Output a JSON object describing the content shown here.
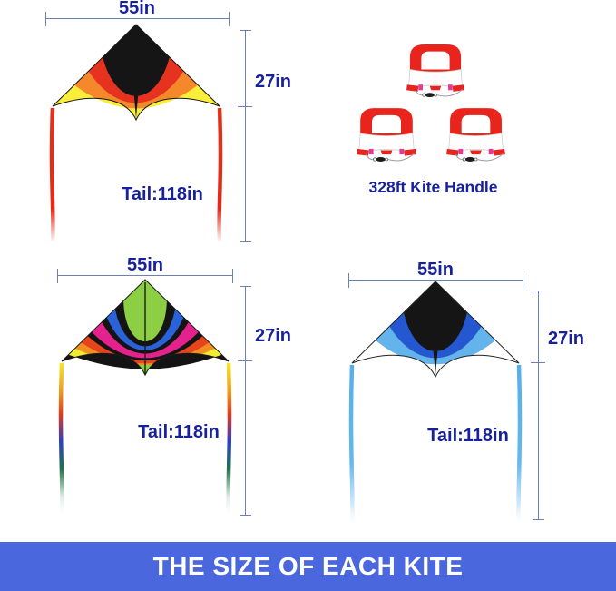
{
  "banner": {
    "text": "THE SIZE OF EACH KITE",
    "bg_color": "#4a67de",
    "text_color": "#ffffff"
  },
  "annotation": {
    "line_color": "#6b80b5",
    "text_color": "#18219c"
  },
  "handles": {
    "label": "328ft Kite Handle",
    "count": 3,
    "accent_color": "#e8241c",
    "body_color": "#fefefe",
    "pink_color": "#e23a96",
    "string_color": "#9aa0ae",
    "clip_color": "#1d1d1d"
  },
  "kites": [
    {
      "name": "orange-delta-kite",
      "width_label": "55in",
      "height_label": "27in",
      "tail_label": "Tail:118in",
      "base": "#151515",
      "outline": "#151515",
      "spine": "goblet",
      "bands": [
        {
          "color": "#e63320",
          "t": 0.4,
          "sag": 98
        },
        {
          "color": "#f5882b",
          "t": 0.57,
          "sag": 103
        },
        {
          "color": "#f9ee3a",
          "t": 0.74,
          "sag": 106
        }
      ],
      "tail_len": 148,
      "tail_stops": [
        [
          0,
          "#e2311c"
        ],
        [
          0.75,
          "#e02c18"
        ],
        [
          1,
          "rgba(224,44,24,0)"
        ]
      ]
    },
    {
      "name": "rainbow-delta-kite",
      "width_label": "55in",
      "height_label": "27in",
      "tail_label": "Tail:118in",
      "base": "#8ccf44",
      "outline": "#1b1b1b",
      "spine": "line",
      "tip": "#8ccf44",
      "bands": [
        {
          "color": "#141414",
          "t": 0.26,
          "sag": 88
        },
        {
          "color": "#2b62d9",
          "t": 0.36,
          "sag": 92
        },
        {
          "color": "#141414",
          "t": 0.46,
          "sag": 95
        },
        {
          "color": "#e3228e",
          "t": 0.52,
          "sag": 98
        },
        {
          "color": "#141414",
          "t": 0.64,
          "sag": 101
        },
        {
          "color": "#e8441c",
          "t": 0.69,
          "sag": 103
        },
        {
          "color": "#f09022",
          "t": 0.77,
          "sag": 105
        },
        {
          "color": "#f3ea33",
          "t": 0.84,
          "sag": 107
        },
        {
          "color": "#141414",
          "t": 0.92,
          "sag": 109
        }
      ],
      "tail_len": 172,
      "tail_stops": [
        [
          0,
          "#f0e82c"
        ],
        [
          0.18,
          "#ee9c1e"
        ],
        [
          0.33,
          "#e23a1a"
        ],
        [
          0.5,
          "#2e3ec6"
        ],
        [
          0.68,
          "#22724a"
        ],
        [
          0.85,
          "rgba(34,114,74,0.15)"
        ],
        [
          1,
          "rgba(255,255,255,0)"
        ]
      ]
    },
    {
      "name": "blue-delta-kite",
      "width_label": "55in",
      "height_label": "27in",
      "tail_label": "Tail:118in",
      "base": "#151515",
      "outline": "#222222",
      "spine": "goblet",
      "bands": [
        {
          "color": "#2458d0",
          "t": 0.38,
          "sag": 96
        },
        {
          "color": "#62b4ea",
          "t": 0.55,
          "sag": 101
        },
        {
          "color": "#ffffff",
          "t": 0.72,
          "sag": 105
        }
      ],
      "tail_len": 180,
      "tail_stops": [
        [
          0,
          "#56b0e8"
        ],
        [
          0.6,
          "#63b8ec"
        ],
        [
          0.85,
          "rgba(120,190,240,0.35)"
        ],
        [
          1,
          "rgba(255,255,255,0)"
        ]
      ]
    }
  ]
}
